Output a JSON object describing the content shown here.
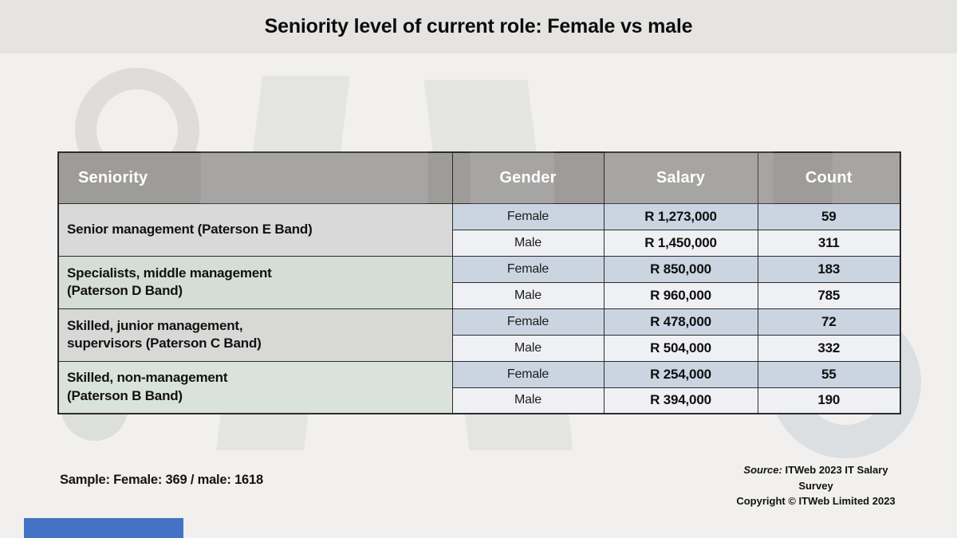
{
  "title": "Seniority level of current role: Female vs male",
  "watermark_text": "ITWeb",
  "table": {
    "headers": {
      "seniority": "Seniority",
      "gender": "Gender",
      "salary": "Salary",
      "count": "Count"
    },
    "groups": [
      {
        "seniority_line1": "Senior management (Paterson E Band)",
        "seniority_line2": "",
        "rows": [
          {
            "gender": "Female",
            "salary": "R 1,273,000",
            "count": "59"
          },
          {
            "gender": "Male",
            "salary": "R 1,450,000",
            "count": "311"
          }
        ]
      },
      {
        "seniority_line1": "Specialists, middle management",
        "seniority_line2": "(Paterson D Band)",
        "rows": [
          {
            "gender": "Female",
            "salary": "R 850,000",
            "count": "183"
          },
          {
            "gender": "Male",
            "salary": "R 960,000",
            "count": "785"
          }
        ]
      },
      {
        "seniority_line1": "Skilled, junior management,",
        "seniority_line2": "supervisors (Paterson C Band)",
        "rows": [
          {
            "gender": "Female",
            "salary": "R 478,000",
            "count": "72"
          },
          {
            "gender": "Male",
            "salary": "R 504,000",
            "count": "332"
          }
        ]
      },
      {
        "seniority_line1": "Skilled, non-management",
        "seniority_line2": "(Paterson B Band)",
        "rows": [
          {
            "gender": "Female",
            "salary": "R 254,000",
            "count": "55"
          },
          {
            "gender": "Male",
            "salary": "R 394,000",
            "count": "190"
          }
        ]
      }
    ]
  },
  "footer": {
    "sample_note": "Sample: Female: 369 / male: 1618",
    "source_label": "Source:",
    "source_text": "ITWeb 2023 IT Salary Survey",
    "copyright": "Copyright © ITWeb Limited 2023"
  },
  "colors": {
    "accent_bar": "#4472c4",
    "header_bg": "#9d9c9a",
    "header_text": "#ffffff",
    "female_row_bg": "#cbd5e2",
    "male_row_bg": "#eff0f3",
    "seniority_bg": "#d9d9d9",
    "border": "#2c2c2c",
    "page_bg": "#f1f0ee",
    "title_band_bg": "#e5e4e2"
  },
  "chart_data": {
    "type": "table",
    "title": "Seniority level of current role: Female vs male",
    "columns": [
      "Seniority",
      "Gender",
      "Salary",
      "Count"
    ],
    "rows": [
      [
        "Senior management (Paterson E Band)",
        "Female",
        "R 1,273,000",
        59
      ],
      [
        "Senior management (Paterson E Band)",
        "Male",
        "R 1,450,000",
        311
      ],
      [
        "Specialists, middle management (Paterson D Band)",
        "Female",
        "R 850,000",
        183
      ],
      [
        "Specialists, middle management (Paterson D Band)",
        "Male",
        "R 960,000",
        785
      ],
      [
        "Skilled, junior management, supervisors (Paterson C Band)",
        "Female",
        "R 478,000",
        72
      ],
      [
        "Skilled, junior management, supervisors (Paterson C Band)",
        "Male",
        "R 504,000",
        332
      ],
      [
        "Skilled, non-management (Paterson B Band)",
        "Female",
        "R 254,000",
        55
      ],
      [
        "Skilled, non-management (Paterson B Band)",
        "Male",
        "R 394,000",
        190
      ]
    ],
    "sample": {
      "female": 369,
      "male": 1618
    },
    "source": "ITWeb 2023 IT Salary Survey",
    "copyright": "Copyright © ITWeb Limited 2023"
  }
}
